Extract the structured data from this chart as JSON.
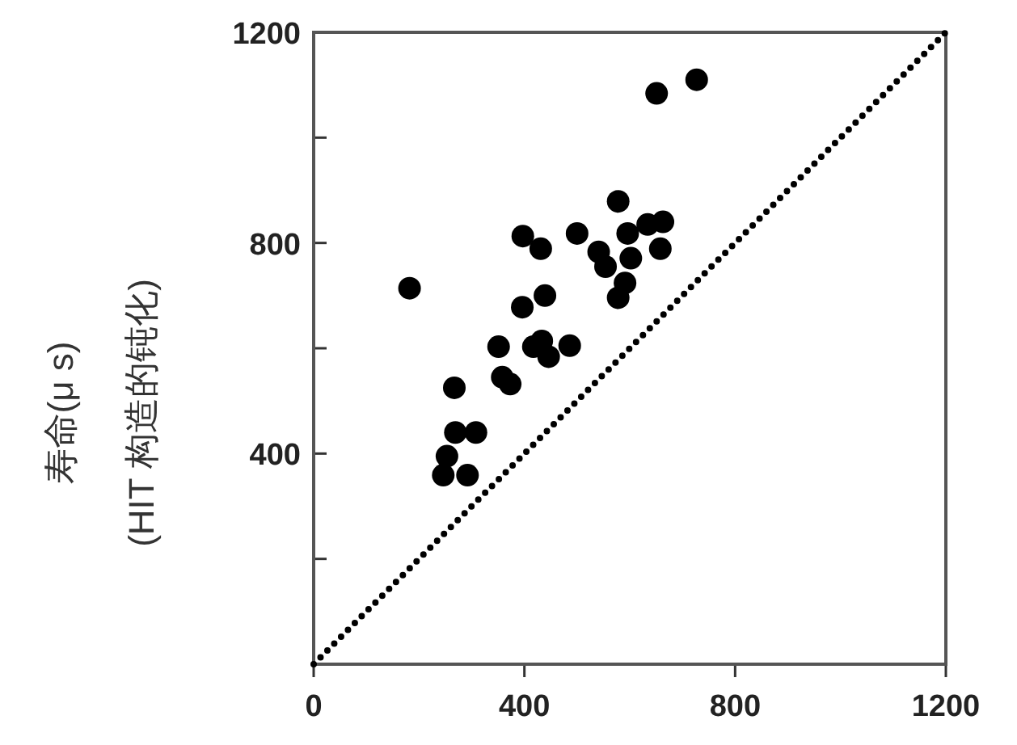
{
  "chart_data": {
    "type": "scatter",
    "ylabel": "寿命(μ s)\n(HIT 构造的钝化)",
    "xlim": [
      0,
      1200
    ],
    "ylim": [
      0,
      1200
    ],
    "xticks": [
      0,
      400,
      800,
      1200
    ],
    "yticks": [
      {
        "value": 0,
        "label": null
      },
      {
        "value": 200,
        "label": null
      },
      400,
      {
        "value": 600,
        "label": null
      },
      800,
      {
        "value": 1000,
        "label": null
      },
      1200
    ],
    "grid": false,
    "series": [
      {
        "color": "#000000",
        "marker": "circle",
        "x": [
          727,
          651,
          578,
          397,
          431,
          500,
          596,
          634,
          663,
          658,
          541,
          554,
          602,
          591,
          578,
          182,
          439,
          396,
          351,
          417,
          433,
          486,
          446,
          358,
          373,
          267,
          269,
          308,
          253,
          246,
          292
        ],
        "values": [
          1110,
          1084,
          879,
          813,
          789,
          818,
          818,
          835,
          840,
          789,
          783,
          755,
          771,
          724,
          696,
          714,
          700,
          678,
          603,
          603,
          614,
          605,
          584,
          545,
          532,
          525,
          440,
          440,
          395,
          359,
          359
        ]
      },
      {
        "type": "line",
        "color": "#000000",
        "marker": "none",
        "line_style": "dotted",
        "x": [
          0,
          1200
        ],
        "values": [
          0,
          1200
        ]
      }
    ]
  }
}
